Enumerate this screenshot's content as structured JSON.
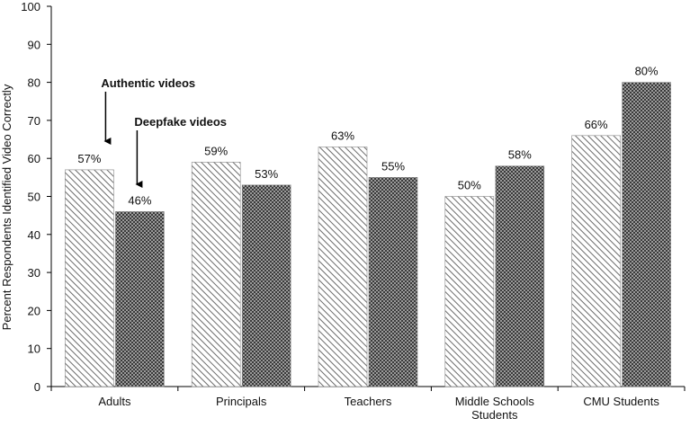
{
  "chart_data": {
    "type": "bar",
    "title": "",
    "xlabel": "",
    "ylabel": "Percent Respondents Identified Video Correctly",
    "ylim": [
      0,
      100
    ],
    "yticks": [
      0,
      10,
      20,
      30,
      40,
      50,
      60,
      70,
      80,
      90,
      100
    ],
    "grid": false,
    "legend": "none",
    "categories": [
      [
        "Adults"
      ],
      [
        "Principals"
      ],
      [
        "Teachers"
      ],
      [
        "Middle Schools",
        "Students"
      ],
      [
        "CMU Students"
      ]
    ],
    "series": [
      {
        "values": [
          57,
          59,
          63,
          50,
          66
        ],
        "labels": [
          "57%",
          "59%",
          "63%",
          "50%",
          "66%"
        ],
        "pattern": "diagonal-hatch",
        "color": "#6b6b6b"
      },
      {
        "values": [
          46,
          53,
          55,
          58,
          80
        ],
        "labels": [
          "46%",
          "53%",
          "55%",
          "58%",
          "80%"
        ],
        "pattern": "crosshatch",
        "color": "#3a3a3a"
      }
    ],
    "annotations": [
      {
        "text": "Authentic videos",
        "series": 0,
        "category": 0
      },
      {
        "text": "Deepfake videos",
        "series": 1,
        "category": 0
      }
    ]
  }
}
